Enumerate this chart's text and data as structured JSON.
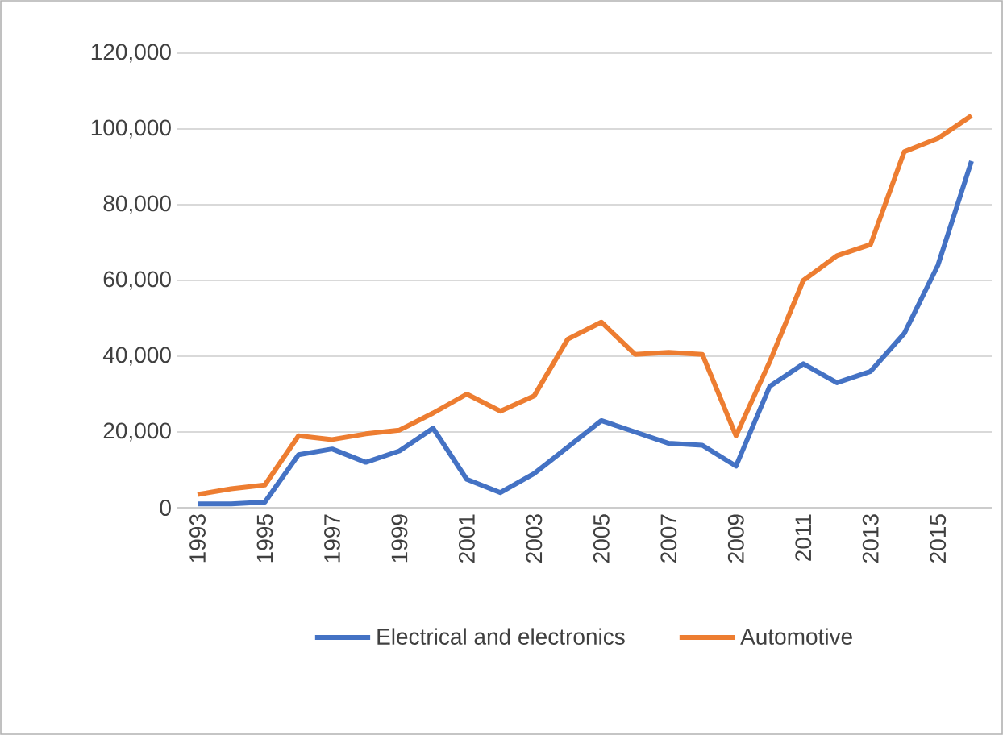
{
  "chart_data": {
    "type": "line",
    "categories": [
      "1993",
      null,
      "1995",
      null,
      "1997",
      null,
      "1999",
      null,
      "2001",
      null,
      "2003",
      null,
      "2005",
      null,
      "2007",
      null,
      "2009",
      null,
      "2011",
      null,
      "2013",
      null,
      "2015",
      null
    ],
    "series": [
      {
        "name": "Electrical and electronics",
        "color": "#4472c4",
        "values": [
          1000,
          1000,
          1500,
          14000,
          15500,
          12000,
          15000,
          21000,
          7500,
          4000,
          9000,
          16000,
          23000,
          20000,
          17000,
          16500,
          11000,
          32000,
          38000,
          33000,
          36000,
          46000,
          64000,
          91500
        ]
      },
      {
        "name": "Automotive",
        "color": "#ed7d31",
        "values": [
          3500,
          5000,
          6000,
          19000,
          18000,
          19500,
          20500,
          25000,
          30000,
          25500,
          29500,
          44500,
          49000,
          40500,
          41000,
          40500,
          19000,
          38500,
          60000,
          66500,
          69500,
          94000,
          97500,
          103500
        ]
      }
    ],
    "ylim": [
      0,
      120000
    ],
    "yticks": [
      0,
      {
        "value": 20000,
        "label": "20,000"
      },
      {
        "value": 40000,
        "label": "40,000"
      },
      {
        "value": 60000,
        "label": "60,000"
      },
      {
        "value": 80000,
        "label": "80,000"
      },
      {
        "value": 100000,
        "label": "100,000"
      },
      {
        "value": 120000,
        "label": "120,000"
      }
    ],
    "grid": "y",
    "legend": "bottom",
    "marker": "none",
    "line_style": "solid"
  }
}
